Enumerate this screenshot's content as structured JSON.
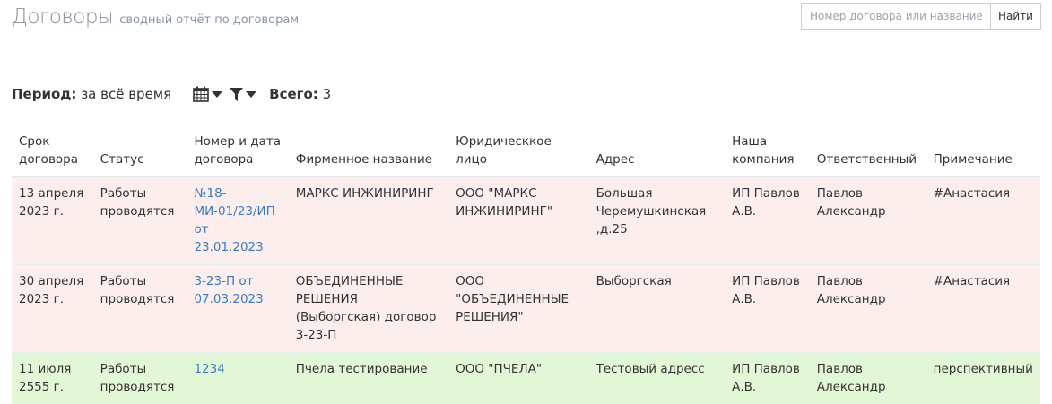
{
  "header": {
    "title": "Договоры",
    "subtitle": "сводный отчёт по договорам"
  },
  "search": {
    "placeholder": "Номер договора или название",
    "button": "Найти"
  },
  "toolbar": {
    "period_label": "Период:",
    "period_value": "за всё время",
    "total_label": "Всего:",
    "total_value": "3",
    "icons": [
      "calendar-icon",
      "filter-icon"
    ]
  },
  "colors": {
    "row_danger": "#fdeeee",
    "row_success": "#e2f7d6",
    "link": "#3b7bbf"
  },
  "table": {
    "columns": [
      "Срок договора",
      "Статус",
      "Номер и дата договора",
      "Фирменное название",
      "Юридическкое лицо",
      "Адрес",
      "Наша компания",
      "Ответственный",
      "Примечание"
    ],
    "rows": [
      {
        "state": "danger",
        "cells": [
          "13 апреля 2023 г.",
          "Работы проводятся",
          "№18-МИ-01/23/ИП от 23.01.2023",
          "МАРКС ИНЖИНИРИНГ",
          "ООО \"МАРКС ИНЖИНИРИНГ\"",
          "Большая Черемушкинская ,д.25",
          "ИП Павлов А.В.",
          "Павлов Александр",
          "#Анастасия"
        ]
      },
      {
        "state": "danger",
        "cells": [
          "30 апреля 2023 г.",
          "Работы проводятся",
          "3-23-П от 07.03.2023",
          "ОБЪЕДИНЕННЫЕ РЕШЕНИЯ (Выборгская) договор 3-23-П",
          "ООО \"ОБЪЕДИНЕННЫЕ РЕШЕНИЯ\"",
          "Выборгская",
          "ИП Павлов А.В.",
          "Павлов Александр",
          "#Анастасия"
        ]
      },
      {
        "state": "success",
        "cells": [
          "11 июля 2555 г.",
          "Работы проводятся",
          "1234",
          "Пчела тестирование",
          "ООО \"ПЧЕЛА\"",
          "Тестовый адресс",
          "ИП Павлов А.В.",
          "Павлов Александр",
          "перспективный"
        ]
      }
    ]
  }
}
